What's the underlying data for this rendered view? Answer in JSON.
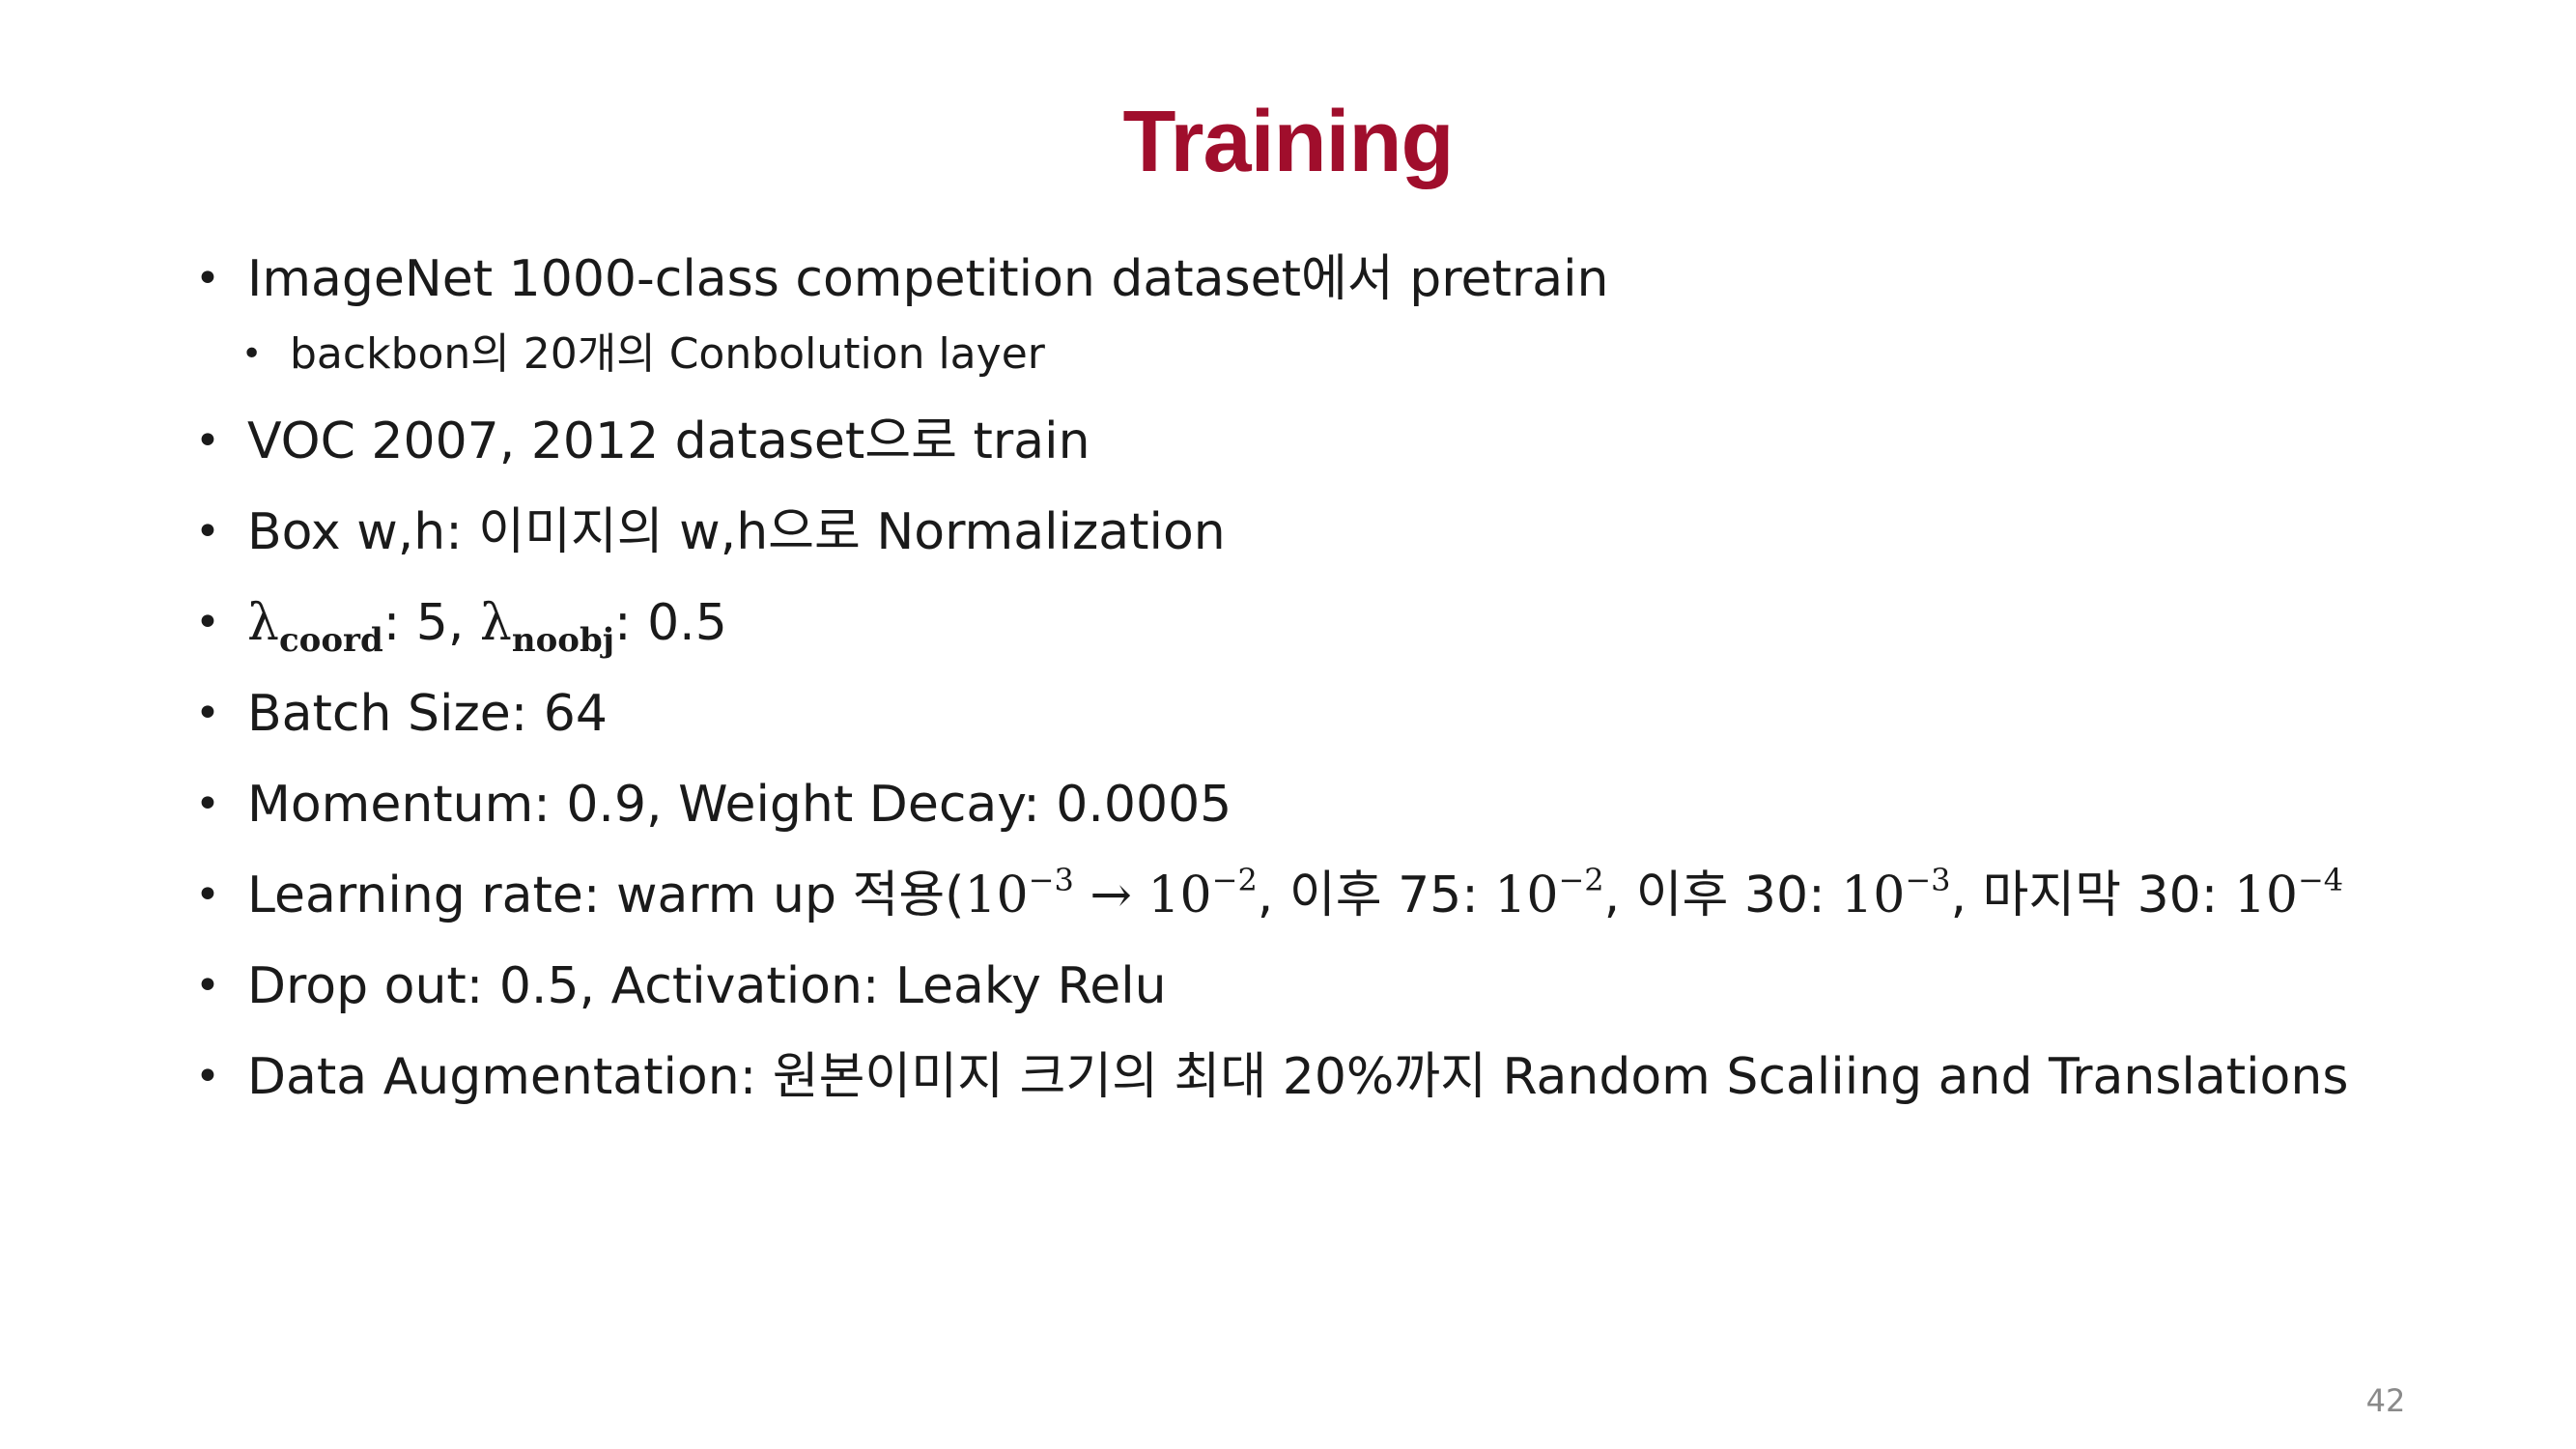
{
  "slide": {
    "title": "Training",
    "page_number": "42",
    "bullet_char": "•",
    "colors": {
      "title": "#a00e2c",
      "text": "#1a1a1a",
      "page_number": "#8a8a8a"
    },
    "items": [
      {
        "text": "ImageNet 1000-class competition dataset에서 pretrain"
      },
      {
        "text": "VOC 2007, 2012 dataset으로 train"
      },
      {
        "text": "Box w,h: 이미지의 w,h으로 Normalization"
      },
      {
        "text": "Batch Size: 64"
      },
      {
        "text": "Momentum: 0.9, Weight Decay: 0.0005"
      },
      {
        "text": "Drop out: 0.5, Activation: Leaky Relu"
      },
      {
        "text": "Data Augmentation: 원본이미지 크기의 최대 20%까지 Random Scaliing and Translations"
      }
    ],
    "subitem": {
      "text": "backbon의 20개의 Conbolution layer"
    },
    "lambda": {
      "symbol": "λ",
      "coord_sub": "coord",
      "coord_sep": ": 5, ",
      "noobj_sub": "noobj",
      "noobj_sep": ": 0.5"
    },
    "learning_rate": {
      "prefix": "Learning rate: warm up 적용(",
      "base": "10",
      "exp1": "−3",
      "arrow": " → ",
      "exp2": "−2",
      "mid1": ", 이후 75: ",
      "exp3": "−2",
      "mid2": ", 이후 30: ",
      "exp4": "−3",
      "mid3": ", 마지막 30: ",
      "exp5": "−4"
    }
  }
}
